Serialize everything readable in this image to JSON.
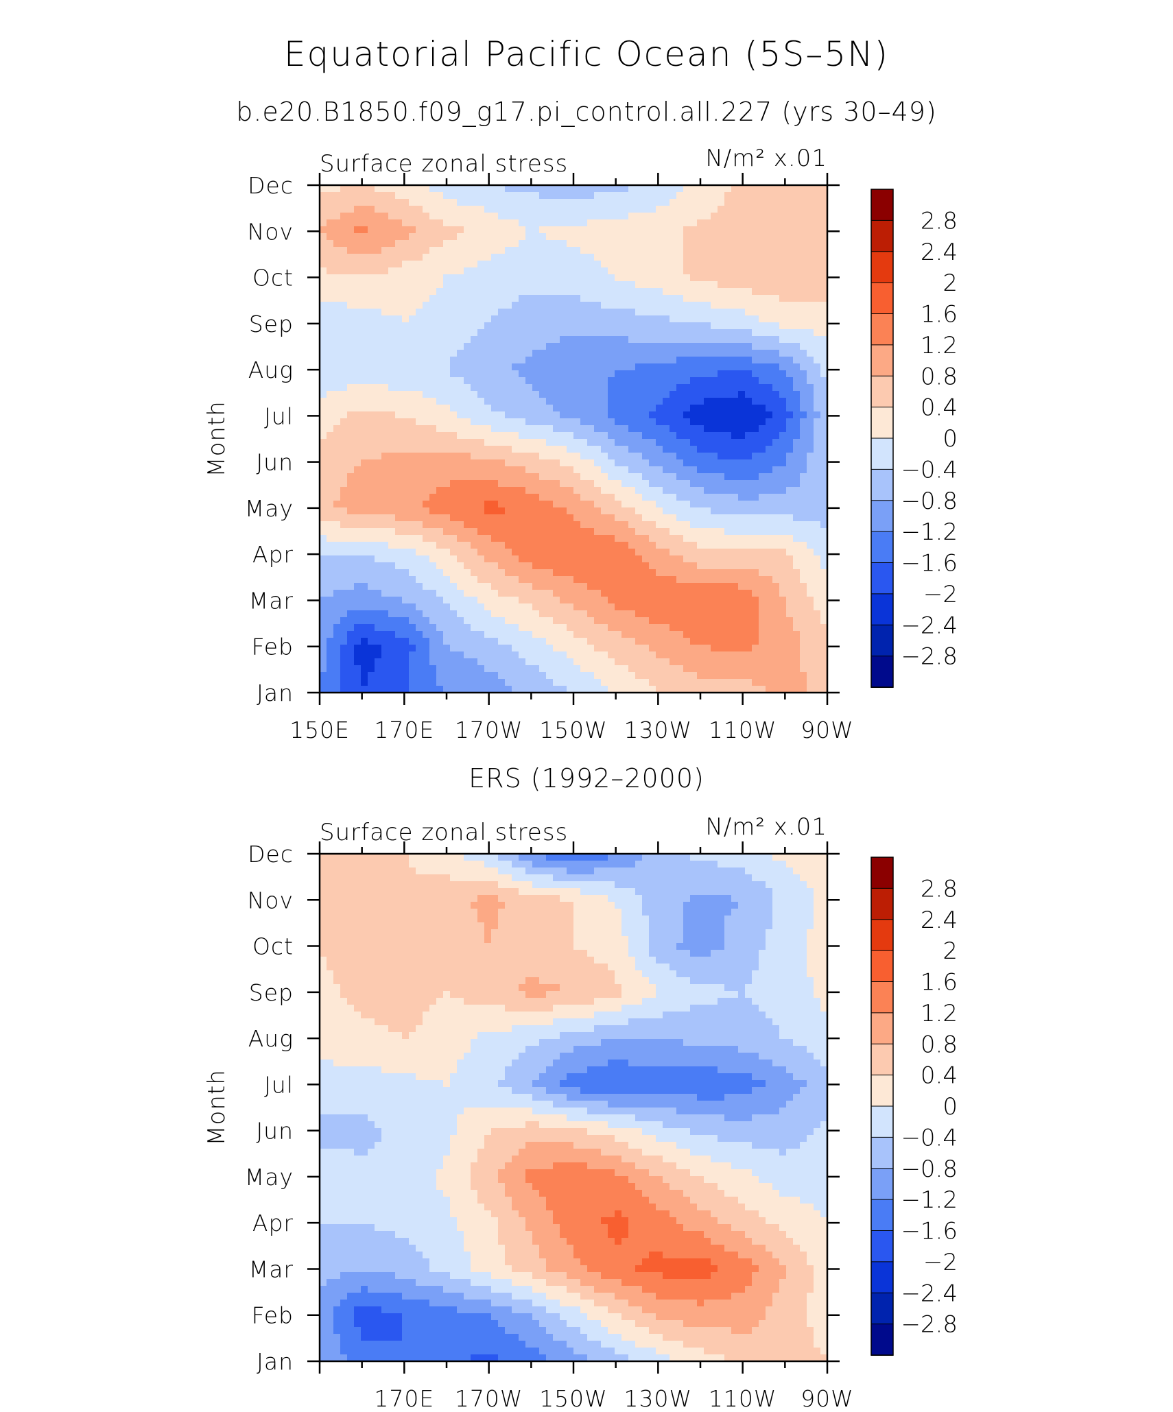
{
  "title": "Equatorial Pacific Ocean (5S–5N)",
  "subtitle": "b.e20.B1850.f09_g17.pi_control.all.227 (yrs 30–49)",
  "colors": {
    "neg": [
      "#000a8c",
      "#0023ae",
      "#0a34d8",
      "#2a57f0",
      "#4a7cf5",
      "#7aa0f7",
      "#a8c3fb",
      "#d2e4fd"
    ],
    "pos": [
      "#fde8d6",
      "#fccab0",
      "#fca985",
      "#fb8255",
      "#f85f30",
      "#e43a0f",
      "#bc1e04",
      "#8b0000"
    ]
  },
  "chart_data": [
    {
      "type": "heatmap",
      "title": "",
      "panel_label": "Surface zonal stress",
      "units": "N/m² x.01",
      "xlabel": "",
      "ylabel": "Month",
      "x_ticks": [
        "150E",
        "170E",
        "170W",
        "150W",
        "130W",
        "110W",
        "90W"
      ],
      "x_tick_lon": [
        150,
        170,
        190,
        210,
        230,
        250,
        270
      ],
      "xlim": [
        150,
        270
      ],
      "y_ticks": [
        "Jan",
        "Feb",
        "Mar",
        "Apr",
        "May",
        "Jun",
        "Jul",
        "Aug",
        "Sep",
        "Oct",
        "Nov",
        "Dec"
      ],
      "colorbar_levels": [
        -2.8,
        -2.4,
        -2,
        -1.6,
        -1.2,
        -0.8,
        -0.4,
        0,
        0.4,
        0.8,
        1.2,
        1.6,
        2,
        2.4,
        2.8
      ],
      "colorbar_labels": [
        "2.8",
        "2.4",
        "2",
        "1.6",
        "1.2",
        "0.8",
        "0.4",
        "0",
        "−0.4",
        "−0.8",
        "−1.2",
        "−1.6",
        "−2",
        "−2.4",
        "−2.8"
      ],
      "grid_lon": [
        150,
        160,
        170,
        180,
        190,
        200,
        210,
        220,
        230,
        240,
        250,
        260,
        270
      ],
      "values": [
        [
          -1.2,
          -2.0,
          -1.6,
          -1.2,
          -1.0,
          -0.7,
          -0.4,
          0.0,
          0.4,
          0.6,
          0.6,
          0.9,
          0.7
        ],
        [
          -1.0,
          -2.2,
          -1.8,
          -0.8,
          -0.6,
          -0.2,
          0.2,
          0.6,
          0.9,
          1.2,
          1.3,
          1.0,
          0.5
        ],
        [
          -0.8,
          -1.0,
          -0.8,
          -0.4,
          0.2,
          0.5,
          0.9,
          1.3,
          1.5,
          1.6,
          1.5,
          0.8,
          0.2
        ],
        [
          -0.4,
          -0.4,
          -0.2,
          0.3,
          0.9,
          1.4,
          1.6,
          1.5,
          1.0,
          0.5,
          0.5,
          0.5,
          -0.2
        ],
        [
          0.7,
          1.0,
          1.1,
          1.4,
          1.7,
          1.5,
          1.1,
          0.6,
          0.0,
          -0.4,
          -0.6,
          -0.6,
          -0.6
        ],
        [
          0.6,
          0.8,
          0.9,
          1.0,
          0.9,
          0.6,
          0.3,
          -0.4,
          -0.9,
          -1.4,
          -1.6,
          -1.2,
          -0.4
        ],
        [
          0.2,
          0.5,
          0.4,
          0.1,
          -0.3,
          -0.6,
          -0.9,
          -1.3,
          -1.7,
          -2.2,
          -2.4,
          -1.8,
          -0.5
        ],
        [
          -0.3,
          -0.2,
          -0.3,
          -0.4,
          -0.7,
          -0.9,
          -1.1,
          -1.2,
          -1.3,
          -1.5,
          -1.6,
          -1.2,
          -0.3
        ],
        [
          -0.3,
          -0.2,
          0.0,
          -0.2,
          -0.4,
          -0.6,
          -0.7,
          -0.6,
          -0.5,
          -0.4,
          -0.2,
          0.1,
          0.2
        ],
        [
          0.3,
          0.4,
          0.2,
          0.0,
          -0.2,
          -0.3,
          -0.2,
          0.0,
          0.2,
          0.5,
          0.6,
          0.7,
          0.7
        ],
        [
          0.8,
          1.3,
          0.9,
          0.5,
          0.3,
          0.0,
          0.1,
          0.2,
          0.3,
          0.5,
          0.6,
          0.7,
          0.7
        ],
        [
          0.3,
          0.4,
          0.2,
          -0.2,
          -0.4,
          -0.5,
          -0.6,
          -0.5,
          -0.3,
          0.1,
          0.5,
          0.6,
          0.6
        ]
      ]
    },
    {
      "type": "heatmap",
      "title": "ERS (1992–2000)",
      "panel_label": "Surface zonal stress",
      "units": "N/m² x.01",
      "xlabel": "",
      "ylabel": "Month",
      "x_ticks": [
        "170E",
        "170W",
        "150W",
        "130W",
        "110W",
        "90W"
      ],
      "x_tick_lon": [
        170,
        190,
        210,
        230,
        250,
        270
      ],
      "xlim": [
        150,
        270
      ],
      "y_ticks": [
        "Jan",
        "Feb",
        "Mar",
        "Apr",
        "May",
        "Jun",
        "Jul",
        "Aug",
        "Sep",
        "Oct",
        "Nov",
        "Dec"
      ],
      "colorbar_levels": [
        -2.8,
        -2.4,
        -2,
        -1.6,
        -1.2,
        -0.8,
        -0.4,
        0,
        0.4,
        0.8,
        1.2,
        1.6,
        2,
        2.4,
        2.8
      ],
      "colorbar_labels": [
        "2.8",
        "2.4",
        "2",
        "1.6",
        "1.2",
        "0.8",
        "0.4",
        "0",
        "−0.4",
        "−0.8",
        "−1.2",
        "−1.6",
        "−2",
        "−2.4",
        "−2.8"
      ],
      "grid_lon": [
        150,
        160,
        170,
        180,
        190,
        200,
        210,
        220,
        230,
        240,
        250,
        260,
        270
      ],
      "values": [
        [
          -0.8,
          -1.4,
          -1.6,
          -1.5,
          -1.7,
          -1.4,
          -1.0,
          -0.6,
          -0.2,
          0.2,
          0.5,
          0.6,
          0.4
        ],
        [
          -1.0,
          -1.8,
          -1.6,
          -1.4,
          -1.2,
          -0.8,
          -0.2,
          0.4,
          0.9,
          1.0,
          1.0,
          0.6,
          0.2
        ],
        [
          -0.6,
          -0.8,
          -0.6,
          -0.3,
          0.2,
          0.6,
          1.1,
          1.5,
          1.7,
          1.8,
          1.4,
          0.8,
          0.2
        ],
        [
          -0.4,
          -0.4,
          -0.3,
          -0.1,
          0.3,
          0.9,
          1.4,
          1.7,
          1.4,
          1.0,
          0.6,
          0.3,
          0.0
        ],
        [
          -0.2,
          -0.3,
          -0.3,
          0.1,
          0.7,
          1.3,
          1.5,
          1.3,
          0.8,
          0.4,
          0.1,
          -0.2,
          -0.2
        ],
        [
          -0.5,
          -0.5,
          -0.3,
          -0.1,
          0.4,
          0.6,
          0.5,
          0.2,
          -0.2,
          -0.5,
          -0.6,
          -0.6,
          -0.3
        ],
        [
          -0.2,
          -0.2,
          -0.1,
          0.0,
          -0.3,
          -0.8,
          -1.4,
          -1.6,
          -1.4,
          -1.5,
          -1.4,
          -1.0,
          -0.6
        ],
        [
          0.2,
          0.3,
          0.4,
          0.2,
          -0.1,
          -0.3,
          -0.6,
          -0.8,
          -0.8,
          -0.7,
          -0.6,
          -0.4,
          -0.1
        ],
        [
          0.3,
          0.5,
          0.6,
          0.4,
          0.6,
          0.9,
          0.8,
          0.5,
          0.0,
          -0.3,
          -0.4,
          -0.2,
          0.1
        ],
        [
          0.4,
          0.6,
          0.6,
          0.5,
          0.8,
          0.6,
          0.4,
          0.2,
          -0.6,
          -1.0,
          -0.6,
          -0.2,
          0.2
        ],
        [
          0.4,
          0.5,
          0.5,
          0.7,
          0.9,
          0.6,
          0.4,
          0.0,
          -0.6,
          -0.9,
          -0.8,
          -0.3,
          0.1
        ],
        [
          0.5,
          0.8,
          0.4,
          0.1,
          -0.3,
          -1.2,
          -1.6,
          -1.2,
          -0.6,
          -0.3,
          -0.2,
          0.1,
          0.3
        ]
      ]
    }
  ]
}
